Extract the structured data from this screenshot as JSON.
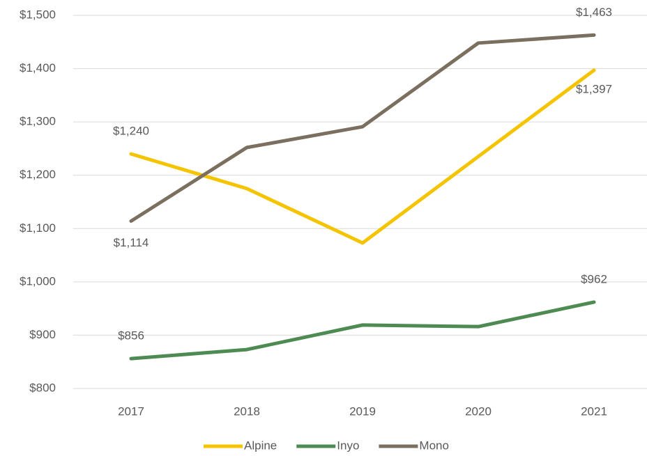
{
  "chart_data": {
    "type": "line",
    "categories": [
      "2017",
      "2018",
      "2019",
      "2020",
      "2021"
    ],
    "series": [
      {
        "name": "Alpine",
        "color": "#f5c400",
        "values": [
          1240,
          1175,
          1073,
          1235,
          1397
        ],
        "value_labels": [
          "$1,240",
          null,
          null,
          null,
          "$1,397"
        ]
      },
      {
        "name": "Inyo",
        "color": "#4e8b53",
        "values": [
          856,
          873,
          919,
          916,
          962
        ],
        "value_labels": [
          "$856",
          null,
          null,
          null,
          "$962"
        ]
      },
      {
        "name": "Mono",
        "color": "#7b6f5f",
        "values": [
          1114,
          1252,
          1291,
          1448,
          1463
        ],
        "value_labels": [
          "$1,114",
          null,
          null,
          null,
          "$1,463"
        ]
      }
    ],
    "ylim": [
      800,
      1500
    ],
    "yticks": [
      {
        "value": 800,
        "label": "$800"
      },
      {
        "value": 900,
        "label": "$900"
      },
      {
        "value": 1000,
        "label": "$1,000"
      },
      {
        "value": 1100,
        "label": "$1,100"
      },
      {
        "value": 1200,
        "label": "$1,200"
      },
      {
        "value": 1300,
        "label": "$1,300"
      },
      {
        "value": 1400,
        "label": "$1,400"
      },
      {
        "value": 1500,
        "label": "$1,500"
      }
    ],
    "grid": true,
    "legend": "bottom"
  }
}
